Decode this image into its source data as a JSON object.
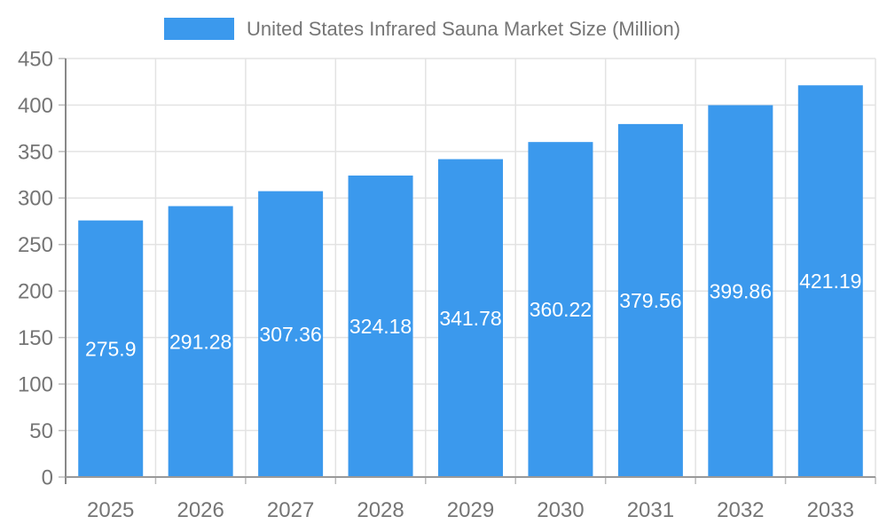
{
  "legend": {
    "label": "United States Infrared Sauna Market Size (Million)",
    "swatch_color": "#3B99ED",
    "text_color": "#757575"
  },
  "chart_data": {
    "type": "bar",
    "title": "United States Infrared Sauna Market Size (Million)",
    "series_name": "United States Infrared Sauna Market Size (Million)",
    "categories": [
      "2025",
      "2026",
      "2027",
      "2028",
      "2029",
      "2030",
      "2031",
      "2032",
      "2033"
    ],
    "values": [
      275.9,
      291.28,
      307.36,
      324.18,
      341.78,
      360.22,
      379.56,
      399.86,
      421.19
    ],
    "value_labels": [
      "275.9",
      "291.28",
      "307.36",
      "324.18",
      "341.78",
      "360.22",
      "379.56",
      "399.86",
      "421.19"
    ],
    "xlabel": "",
    "ylabel": "",
    "ylim": [
      0,
      450
    ],
    "ytick_step": 50,
    "yticks": [
      0,
      50,
      100,
      150,
      200,
      250,
      300,
      350,
      400,
      450
    ],
    "grid": true,
    "legend_position": "top",
    "colors": {
      "bar": "#3B99ED",
      "value_label": "#ffffff",
      "axis_tick_label": "#757575",
      "grid_line": "#e3e3e3",
      "y_axis_line": "#888888",
      "x_axis_line": "#999999",
      "tick_mark": "#bbbbbb",
      "background": "#ffffff"
    }
  }
}
